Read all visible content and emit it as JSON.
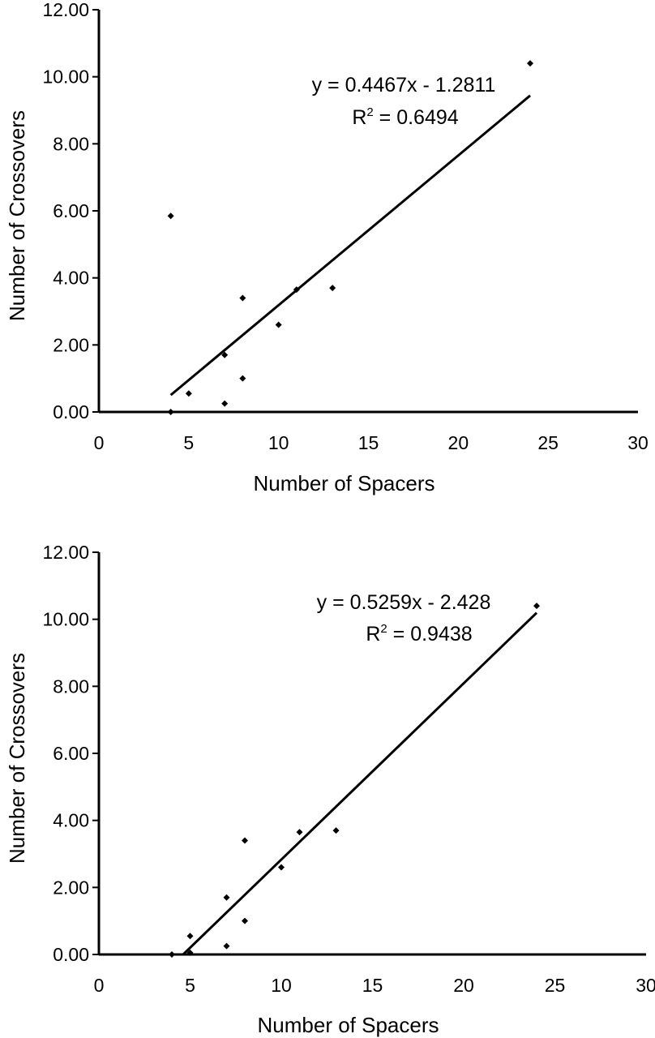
{
  "chart_data": [
    {
      "type": "scatter",
      "xlabel": "Number of Spacers",
      "ylabel": "Number of Crossovers",
      "xlim": [
        0,
        30
      ],
      "ylim": [
        0,
        12
      ],
      "xticks": [
        0,
        5,
        10,
        15,
        20,
        25,
        30
      ],
      "yticks": [
        "0.00",
        "2.00",
        "4.00",
        "6.00",
        "8.00",
        "10.00",
        "12.00"
      ],
      "grid": false,
      "points": [
        {
          "x": 4,
          "y": 0.0
        },
        {
          "x": 4,
          "y": 5.85
        },
        {
          "x": 5,
          "y": 0.55
        },
        {
          "x": 7,
          "y": 0.25
        },
        {
          "x": 7,
          "y": 1.7
        },
        {
          "x": 8,
          "y": 1.0
        },
        {
          "x": 8,
          "y": 3.4
        },
        {
          "x": 10,
          "y": 2.6
        },
        {
          "x": 11,
          "y": 3.65
        },
        {
          "x": 13,
          "y": 3.7
        },
        {
          "x": 24,
          "y": 10.4
        }
      ],
      "trendline": {
        "slope": 0.4467,
        "intercept": -1.2811,
        "x_range": [
          4,
          24
        ]
      },
      "equation": "y = 0.4467x - 1.2811",
      "r2_prefix": "R",
      "r2_superscript": "2",
      "r2_value": " = 0.6494"
    },
    {
      "type": "scatter",
      "xlabel": "Number of Spacers",
      "ylabel": "Number of Crossovers",
      "xlim": [
        0,
        30
      ],
      "ylim": [
        0,
        12
      ],
      "xticks": [
        0,
        5,
        10,
        15,
        20,
        25,
        30
      ],
      "yticks": [
        "0.00",
        "2.00",
        "4.00",
        "6.00",
        "8.00",
        "10.00",
        "12.00"
      ],
      "grid": false,
      "points": [
        {
          "x": 4,
          "y": 0.0
        },
        {
          "x": 5,
          "y": 0.05
        },
        {
          "x": 5,
          "y": 0.55
        },
        {
          "x": 7,
          "y": 0.25
        },
        {
          "x": 7,
          "y": 1.7
        },
        {
          "x": 8,
          "y": 1.0
        },
        {
          "x": 8,
          "y": 3.4
        },
        {
          "x": 10,
          "y": 2.6
        },
        {
          "x": 11,
          "y": 3.65
        },
        {
          "x": 13,
          "y": 3.7
        },
        {
          "x": 24,
          "y": 10.4
        }
      ],
      "trendline": {
        "slope": 0.5259,
        "intercept": -2.428,
        "x_range": [
          4.62,
          24
        ]
      },
      "equation": "y = 0.5259x - 2.428",
      "r2_prefix": "R",
      "r2_superscript": "2",
      "r2_value": " = 0.9438"
    }
  ]
}
